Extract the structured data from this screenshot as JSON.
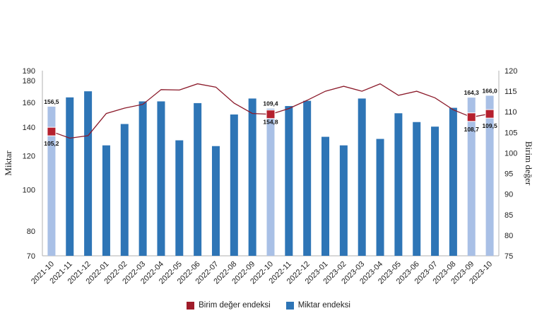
{
  "chart_data": {
    "type": "bar",
    "categories": [
      "2021-10",
      "2021-11",
      "2021-12",
      "2022-01",
      "2022-02",
      "2022-03",
      "2022-04",
      "2022-05",
      "2022-06",
      "2022-07",
      "2022-08",
      "2022-09",
      "2022-10",
      "2022-11",
      "2022-12",
      "2023-01",
      "2023-02",
      "2023-03",
      "2023-04",
      "2023-05",
      "2023-06",
      "2023-07",
      "2023-08",
      "2023-09",
      "2023-10"
    ],
    "ylabel_left": "Miktar",
    "ylabel_right": "Birim değer",
    "left_axis": {
      "scale": "log",
      "ylim": [
        70,
        190
      ],
      "ticks": [
        70,
        80,
        100,
        120,
        140,
        160,
        180,
        190
      ]
    },
    "right_axis": {
      "scale": "linear",
      "ylim": [
        75,
        120
      ],
      "ticks": [
        75,
        80,
        85,
        90,
        95,
        100,
        105,
        110,
        115,
        120
      ]
    },
    "series": [
      {
        "name": "Miktar endeksi",
        "type": "bar",
        "axis": "left",
        "color": "#2e75b6",
        "highlight_color": "#a9c0e6",
        "highlighted": [
          "2021-10",
          "2022-10",
          "2023-09",
          "2023-10"
        ],
        "values": [
          156.5,
          164.5,
          170.0,
          127.0,
          142.5,
          161.0,
          161.0,
          130.5,
          159.5,
          126.5,
          150.0,
          163.5,
          154.8,
          157.0,
          161.5,
          133.0,
          127.0,
          163.5,
          131.5,
          151.0,
          144.0,
          140.5,
          155.5,
          164.3,
          166.0
        ]
      },
      {
        "name": "Birim değer endeksi",
        "type": "line",
        "axis": "right",
        "color": "#8b1a2a",
        "marker_color": "#b5202e",
        "markers": [
          "2021-10",
          "2022-10",
          "2023-09",
          "2023-10"
        ],
        "values": [
          105.2,
          103.6,
          104.2,
          109.6,
          110.9,
          111.8,
          115.4,
          115.3,
          116.8,
          116.0,
          112.1,
          109.6,
          109.4,
          110.8,
          112.8,
          115.0,
          116.2,
          115.0,
          116.8,
          114.0,
          115.0,
          113.4,
          110.5,
          108.7,
          109.5
        ]
      }
    ],
    "data_labels": [
      {
        "category": "2021-10",
        "bar": "156,5",
        "line": "105,2"
      },
      {
        "category": "2022-10",
        "bar": "154,8",
        "line": "109,4"
      },
      {
        "category": "2023-09",
        "bar": "164,3",
        "line": "108,7"
      },
      {
        "category": "2023-10",
        "bar": "166,0",
        "line": "109,5"
      }
    ],
    "legend": {
      "position": "bottom",
      "items": [
        {
          "label": "Birim değer endeksi",
          "color": "#a01c2a"
        },
        {
          "label": "Miktar endeksi",
          "color": "#2e75b6"
        }
      ]
    }
  }
}
